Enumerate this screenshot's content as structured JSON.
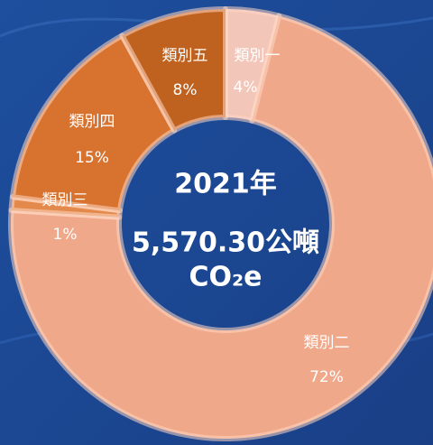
{
  "chart_data": {
    "type": "donut",
    "categories": [
      "類別一",
      "類別二",
      "類別三",
      "類別四",
      "類別五"
    ],
    "values": [
      4,
      72,
      1,
      15,
      8
    ],
    "value_labels": [
      "4%",
      "72%",
      "1%",
      "15%",
      "8%"
    ],
    "colors": [
      "#f3c6ba",
      "#f0a88b",
      "#e2894b",
      "#d8732f",
      "#c0621f"
    ],
    "center_text": [
      "2021年",
      "5,570.30公噸",
      "CO₂e"
    ]
  }
}
